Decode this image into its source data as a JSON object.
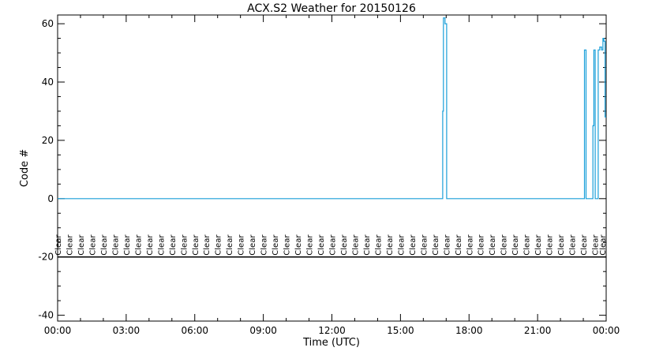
{
  "chart_data": {
    "type": "line",
    "title": "ACX.S2 Weather for 20150126",
    "xlabel": "Time (UTC)",
    "ylabel": "Code #",
    "xlim": [
      0,
      24
    ],
    "ylim": [
      -42,
      63
    ],
    "x_tick_labels": [
      "00:00",
      "03:00",
      "06:00",
      "09:00",
      "12:00",
      "15:00",
      "18:00",
      "21:00",
      "00:00"
    ],
    "x_ticks": [
      0,
      3,
      6,
      9,
      12,
      15,
      18,
      21,
      24
    ],
    "y_ticks": [
      -40,
      -20,
      0,
      20,
      40,
      60
    ],
    "y_tick_labels": [
      "-40",
      "-20",
      "0",
      "20",
      "40",
      "60"
    ],
    "reference_line_y": -20,
    "category_label": "Clear",
    "category_label_times": [
      0.0,
      0.5,
      1.0,
      1.5,
      2.0,
      2.5,
      3.0,
      3.5,
      4.0,
      4.5,
      5.0,
      5.5,
      6.0,
      6.5,
      7.0,
      7.5,
      8.0,
      8.5,
      9.0,
      9.5,
      10.0,
      10.5,
      11.0,
      11.5,
      12.0,
      12.5,
      13.0,
      13.5,
      14.0,
      14.5,
      15.0,
      15.5,
      16.0,
      16.5,
      17.0,
      17.5,
      18.0,
      18.5,
      19.0,
      19.5,
      20.0,
      20.5,
      21.0,
      21.5,
      22.0,
      22.5,
      23.0,
      23.5,
      23.83
    ],
    "line_color": "#1a9fd9",
    "series": [
      {
        "x": [
          0,
          16.85,
          16.85,
          16.88,
          16.88,
          16.95,
          16.95,
          17.02,
          17.02,
          23.05,
          23.05,
          23.12,
          23.12,
          23.42,
          23.42,
          23.46,
          23.46,
          23.52,
          23.52,
          23.65,
          23.65,
          23.72,
          23.72,
          23.8,
          23.8,
          23.86,
          23.86,
          23.9,
          23.9,
          23.95,
          23.95,
          24.0
        ],
        "y": [
          0,
          0,
          30,
          30,
          62,
          62,
          60,
          60,
          0,
          0,
          51,
          51,
          0,
          0,
          25,
          25,
          51,
          51,
          0,
          0,
          51,
          51,
          52,
          52,
          51,
          51,
          55,
          55,
          54,
          54,
          28,
          28
        ]
      }
    ]
  }
}
